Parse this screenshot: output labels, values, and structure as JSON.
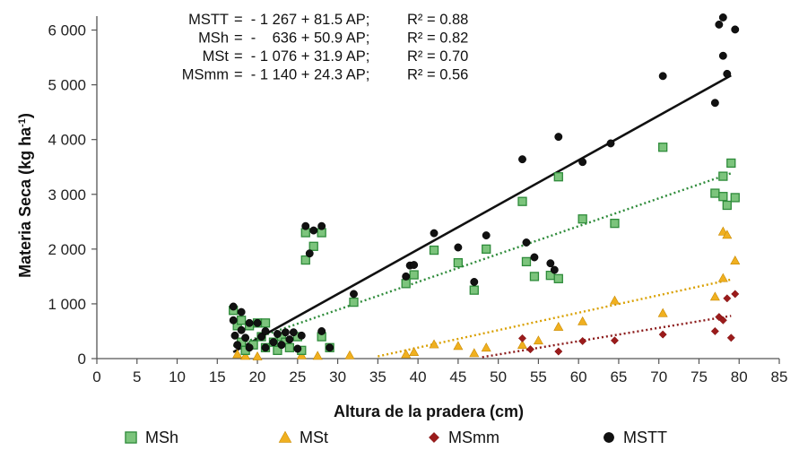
{
  "chart_data": {
    "type": "scatter",
    "xlabel": "Altura de la pradera (cm)",
    "ylabel": "Materia Seca  (kg ha",
    "ylabel_sup": "-1",
    "ylabel_end": ")",
    "xlim": [
      0,
      85
    ],
    "ylim": [
      0,
      6200
    ],
    "x_ticks": [
      0,
      5,
      10,
      15,
      20,
      25,
      30,
      35,
      40,
      45,
      50,
      55,
      60,
      65,
      70,
      75,
      80,
      85
    ],
    "x_tick_labels": [
      "0",
      "5",
      "10",
      "15",
      "20",
      "25",
      "30",
      "35",
      "40",
      "45",
      "50",
      "55",
      "60",
      "65",
      "70",
      "75",
      "80",
      "85"
    ],
    "y_ticks": [
      0,
      1000,
      2000,
      3000,
      4000,
      5000,
      6000
    ],
    "y_tick_labels": [
      "0",
      "1 000",
      "2 000",
      "3 000",
      "4 000",
      "5 000",
      "6 000"
    ],
    "grid": false,
    "legend_position": "bottom",
    "equations": [
      {
        "name": "MSTT",
        "formula": "=  - 1 267 + 81.5 AP;",
        "r2": "R² = 0.88"
      },
      {
        "name": "MSh",
        "formula": "=  -    636 + 50.9 AP;",
        "r2": "R² = 0.82"
      },
      {
        "name": "MSt",
        "formula": "=  - 1 076 + 31.9 AP;",
        "r2": "R² = 0.70"
      },
      {
        "name": "MSmm",
        "formula": "=  - 1 140 + 24.3 AP;",
        "r2": "R² = 0.56"
      }
    ],
    "series": [
      {
        "name": "MSh",
        "marker": "square",
        "color": "#7cc47c",
        "edge": "#2e8b3a",
        "trend": {
          "intercept": -636,
          "slope": 50.9,
          "x_range": [
            17,
            79
          ],
          "style": "dotted",
          "color": "#2e8b3a"
        },
        "points": [
          [
            17,
            880
          ],
          [
            17.5,
            600
          ],
          [
            18,
            300
          ],
          [
            18,
            700
          ],
          [
            18.5,
            150
          ],
          [
            19,
            600
          ],
          [
            19.5,
            250
          ],
          [
            20,
            650
          ],
          [
            20.5,
            400
          ],
          [
            21,
            200
          ],
          [
            21,
            650
          ],
          [
            22,
            300
          ],
          [
            22.5,
            150
          ],
          [
            23,
            400
          ],
          [
            23.5,
            300
          ],
          [
            24,
            200
          ],
          [
            25,
            400
          ],
          [
            25.5,
            150
          ],
          [
            26,
            1800
          ],
          [
            26,
            2300
          ],
          [
            27,
            2050
          ],
          [
            28,
            2300
          ],
          [
            28,
            400
          ],
          [
            29,
            200
          ],
          [
            32,
            1030
          ],
          [
            38.5,
            1370
          ],
          [
            39.5,
            1530
          ],
          [
            42,
            1980
          ],
          [
            45,
            1750
          ],
          [
            47,
            1250
          ],
          [
            48.5,
            2000
          ],
          [
            53,
            2870
          ],
          [
            53.5,
            1770
          ],
          [
            54.5,
            1500
          ],
          [
            56.5,
            1520
          ],
          [
            57.5,
            3320
          ],
          [
            57.5,
            1460
          ],
          [
            60.5,
            2550
          ],
          [
            64.5,
            2470
          ],
          [
            70.5,
            3860
          ],
          [
            77,
            3020
          ],
          [
            78,
            3330
          ],
          [
            78,
            2960
          ],
          [
            78.5,
            2800
          ],
          [
            79,
            3570
          ],
          [
            79.5,
            2940
          ]
        ]
      },
      {
        "name": "MSt",
        "marker": "triangle",
        "color": "#f0b020",
        "edge": "#c98a00",
        "trend": {
          "intercept": -1076,
          "slope": 31.9,
          "x_range": [
            35,
            79
          ],
          "style": "dotted",
          "color": "#d9a000"
        },
        "points": [
          [
            17.5,
            80
          ],
          [
            18.5,
            50
          ],
          [
            20,
            40
          ],
          [
            25.5,
            60
          ],
          [
            27.5,
            50
          ],
          [
            31.5,
            60
          ],
          [
            38.5,
            80
          ],
          [
            39.5,
            120
          ],
          [
            42,
            260
          ],
          [
            45,
            230
          ],
          [
            47,
            100
          ],
          [
            48.5,
            200
          ],
          [
            53,
            250
          ],
          [
            55,
            330
          ],
          [
            57.5,
            580
          ],
          [
            60.5,
            680
          ],
          [
            64.5,
            1060
          ],
          [
            70.5,
            830
          ],
          [
            77,
            1130
          ],
          [
            78,
            2320
          ],
          [
            78,
            1470
          ],
          [
            78.5,
            2260
          ],
          [
            79.5,
            1790
          ]
        ]
      },
      {
        "name": "MSmm",
        "marker": "diamond",
        "color": "#9b1b1b",
        "edge": "#7a1010",
        "trend": {
          "intercept": -1140,
          "slope": 24.3,
          "x_range": [
            48,
            79
          ],
          "style": "dotted",
          "color": "#8b1a1a"
        },
        "points": [
          [
            53,
            370
          ],
          [
            54,
            170
          ],
          [
            57.5,
            130
          ],
          [
            60.5,
            320
          ],
          [
            64.5,
            330
          ],
          [
            70.5,
            440
          ],
          [
            77,
            500
          ],
          [
            77.5,
            760
          ],
          [
            78,
            700
          ],
          [
            78.5,
            1100
          ],
          [
            79,
            380
          ],
          [
            79.5,
            1180
          ]
        ]
      },
      {
        "name": "MSTT",
        "marker": "circle",
        "color": "#111111",
        "edge": "#000000",
        "trend": {
          "intercept": -1267,
          "slope": 81.5,
          "x_range": [
            17,
            79
          ],
          "style": "solid",
          "color": "#111111"
        },
        "points": [
          [
            17,
            950
          ],
          [
            17,
            700
          ],
          [
            17.2,
            420
          ],
          [
            17.5,
            250
          ],
          [
            18,
            850
          ],
          [
            18,
            520
          ],
          [
            18.5,
            380
          ],
          [
            19,
            650
          ],
          [
            19,
            200
          ],
          [
            20,
            650
          ],
          [
            20.5,
            400
          ],
          [
            21,
            200
          ],
          [
            21,
            500
          ],
          [
            22,
            300
          ],
          [
            22.5,
            450
          ],
          [
            23,
            250
          ],
          [
            23.5,
            480
          ],
          [
            24,
            350
          ],
          [
            24.5,
            480
          ],
          [
            25,
            180
          ],
          [
            25.5,
            420
          ],
          [
            26,
            2420
          ],
          [
            26.5,
            1920
          ],
          [
            27,
            2340
          ],
          [
            28,
            2420
          ],
          [
            28,
            500
          ],
          [
            29,
            200
          ],
          [
            32,
            1180
          ],
          [
            38.5,
            1500
          ],
          [
            39,
            1700
          ],
          [
            39.5,
            1710
          ],
          [
            42,
            2290
          ],
          [
            45,
            2030
          ],
          [
            47,
            1400
          ],
          [
            48.5,
            2250
          ],
          [
            53,
            3640
          ],
          [
            53.5,
            2120
          ],
          [
            54.5,
            1850
          ],
          [
            56.5,
            1740
          ],
          [
            57,
            1620
          ],
          [
            57.5,
            4050
          ],
          [
            60.5,
            3590
          ],
          [
            64,
            3930
          ],
          [
            70.5,
            5160
          ],
          [
            77,
            4670
          ],
          [
            77.5,
            6100
          ],
          [
            78,
            6230
          ],
          [
            78,
            5530
          ],
          [
            78.5,
            5200
          ],
          [
            79.5,
            6010
          ]
        ]
      }
    ]
  }
}
